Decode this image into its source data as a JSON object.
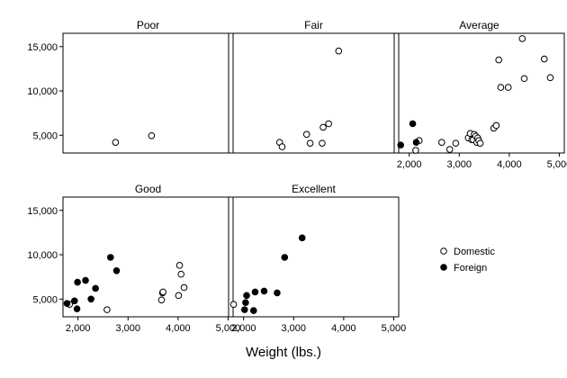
{
  "chart_data": {
    "type": "scatter",
    "xlabel": "Weight (lbs.)",
    "ylabel": "",
    "xlim": [
      1700,
      5100
    ],
    "ylim": [
      3000,
      16500
    ],
    "x_ticks": [
      2000,
      3000,
      4000,
      5000
    ],
    "x_tick_labels": [
      "2,000",
      "3,000",
      "4,000",
      "5,000"
    ],
    "y_ticks": [
      5000,
      10000,
      15000
    ],
    "y_tick_labels": [
      "5,000",
      "10,000",
      "15,000"
    ],
    "grid": false,
    "legend": {
      "placement": "right",
      "entries": [
        {
          "name": "Domestic",
          "marker": "hollow-circle"
        },
        {
          "name": "Foreign",
          "marker": "filled-circle"
        }
      ]
    },
    "panels": [
      {
        "title": "Poor",
        "series": [
          {
            "name": "Domestic",
            "points": [
              [
                2750,
                4200
              ],
              [
                3470,
                4950
              ]
            ]
          },
          {
            "name": "Foreign",
            "points": []
          }
        ]
      },
      {
        "title": "Fair",
        "series": [
          {
            "name": "Domestic",
            "points": [
              [
                2720,
                4200
              ],
              [
                2770,
                3700
              ],
              [
                3260,
                5100
              ],
              [
                3330,
                4100
              ],
              [
                3570,
                4100
              ],
              [
                3590,
                5900
              ],
              [
                3700,
                6300
              ],
              [
                3900,
                14500
              ]
            ]
          },
          {
            "name": "Foreign",
            "points": []
          }
        ]
      },
      {
        "title": "Average",
        "series": [
          {
            "name": "Domestic",
            "points": [
              [
                2130,
                3300
              ],
              [
                2200,
                4400
              ],
              [
                2650,
                4200
              ],
              [
                2810,
                3400
              ],
              [
                2930,
                4100
              ],
              [
                3180,
                4700
              ],
              [
                3220,
                5200
              ],
              [
                3250,
                4500
              ],
              [
                3280,
                4500
              ],
              [
                3300,
                5100
              ],
              [
                3330,
                4900
              ],
              [
                3350,
                4200
              ],
              [
                3370,
                4700
              ],
              [
                3390,
                4400
              ],
              [
                3420,
                4100
              ],
              [
                3690,
                5800
              ],
              [
                3740,
                6100
              ],
              [
                3790,
                13500
              ],
              [
                3830,
                10400
              ],
              [
                3980,
                10400
              ],
              [
                4260,
                15900
              ],
              [
                4300,
                11400
              ],
              [
                4700,
                13600
              ],
              [
                4820,
                11500
              ]
            ]
          },
          {
            "name": "Foreign",
            "points": [
              [
                1830,
                3900
              ],
              [
                2070,
                6300
              ],
              [
                2140,
                4200
              ]
            ]
          }
        ]
      },
      {
        "title": "Good",
        "series": [
          {
            "name": "Domestic",
            "points": [
              [
                1830,
                4400
              ],
              [
                2580,
                3800
              ],
              [
                3670,
                4900
              ],
              [
                3690,
                5700
              ],
              [
                3700,
                5800
              ],
              [
                4010,
                5400
              ],
              [
                4030,
                8800
              ],
              [
                4060,
                7800
              ],
              [
                4120,
                6300
              ]
            ]
          },
          {
            "name": "Foreign",
            "points": [
              [
                1780,
                4500
              ],
              [
                1930,
                4800
              ],
              [
                1980,
                3900
              ],
              [
                1990,
                6900
              ],
              [
                2150,
                7100
              ],
              [
                2260,
                5000
              ],
              [
                2350,
                6200
              ],
              [
                2650,
                9700
              ],
              [
                2770,
                8200
              ]
            ]
          }
        ]
      },
      {
        "title": "Excellent",
        "series": [
          {
            "name": "Domestic",
            "points": [
              [
                1800,
                4400
              ]
            ]
          },
          {
            "name": "Foreign",
            "points": [
              [
                2020,
                3800
              ],
              [
                2040,
                4600
              ],
              [
                2060,
                5400
              ],
              [
                2200,
                3700
              ],
              [
                2230,
                5800
              ],
              [
                2410,
                5900
              ],
              [
                2670,
                5700
              ],
              [
                2820,
                9700
              ],
              [
                3170,
                11900
              ]
            ]
          }
        ]
      }
    ]
  }
}
